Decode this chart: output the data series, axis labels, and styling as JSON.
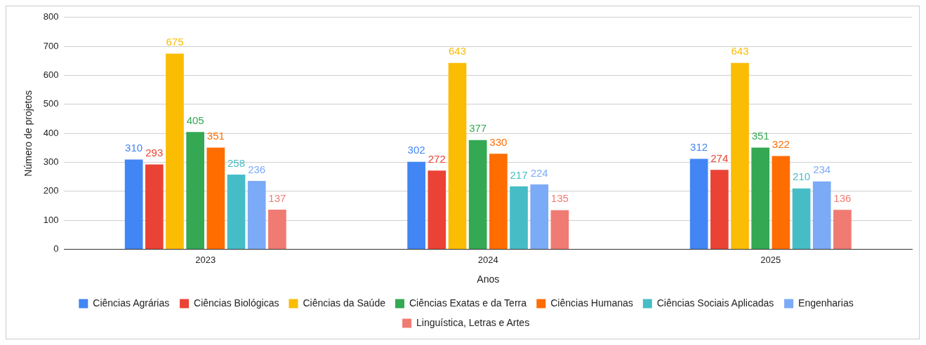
{
  "chart_data": {
    "type": "bar",
    "xlabel": "Anos",
    "ylabel": "Número de projetos",
    "categories": [
      "2023",
      "2024",
      "2025"
    ],
    "series": [
      {
        "name": "Ciências Agrárias",
        "color": "#4285f4",
        "values": [
          310,
          302,
          312
        ]
      },
      {
        "name": "Ciências Biológicas",
        "color": "#ea4335",
        "values": [
          293,
          272,
          274
        ]
      },
      {
        "name": "Ciências da Saúde",
        "color": "#fbbc04",
        "values": [
          675,
          643,
          643
        ]
      },
      {
        "name": "Ciências Exatas e da Terra",
        "color": "#34a853",
        "values": [
          405,
          377,
          351
        ]
      },
      {
        "name": "Ciências Humanas",
        "color": "#ff6d01",
        "values": [
          351,
          330,
          322
        ]
      },
      {
        "name": "Ciências Sociais Aplicadas",
        "color": "#46bdc6",
        "values": [
          258,
          217,
          210
        ]
      },
      {
        "name": "Engenharias",
        "color": "#7baaf7",
        "values": [
          236,
          224,
          234
        ]
      },
      {
        "name": "Linguística, Letras e Artes",
        "color": "#f07b72",
        "values": [
          137,
          135,
          136
        ]
      }
    ],
    "ylim": [
      0,
      800
    ],
    "yticks": [
      0,
      100,
      200,
      300,
      400,
      500,
      600,
      700,
      800
    ],
    "grid": "y",
    "legend": "bottom",
    "data_labels": true
  }
}
